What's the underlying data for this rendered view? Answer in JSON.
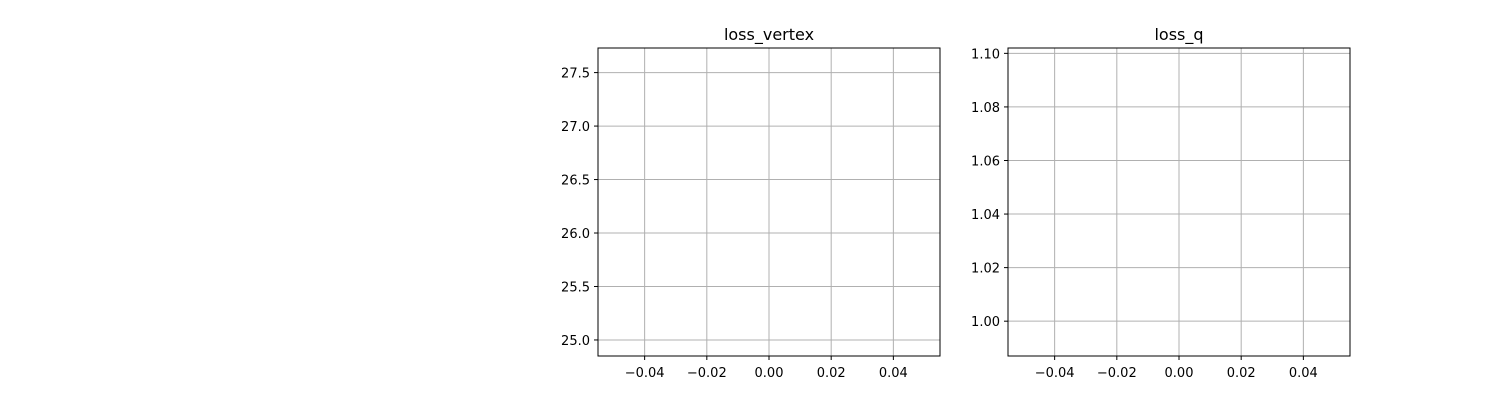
{
  "chart_data": [
    {
      "type": "line",
      "title": "loss_vertex",
      "xlabel": "",
      "ylabel": "",
      "xlim": [
        -0.055,
        0.055
      ],
      "ylim": [
        24.85,
        27.73
      ],
      "x_ticks": [
        -0.04,
        -0.02,
        0.0,
        0.02,
        0.04
      ],
      "x_tick_labels": [
        "−0.04",
        "−0.02",
        "0.00",
        "0.02",
        "0.04"
      ],
      "y_ticks": [
        25.0,
        25.5,
        26.0,
        26.5,
        27.0,
        27.5
      ],
      "y_tick_labels": [
        "25.0",
        "25.5",
        "26.0",
        "26.5",
        "27.0",
        "27.5"
      ],
      "grid": true,
      "series": []
    },
    {
      "type": "line",
      "title": "loss_q",
      "xlabel": "",
      "ylabel": "",
      "xlim": [
        -0.055,
        0.055
      ],
      "ylim": [
        0.987,
        1.102
      ],
      "x_ticks": [
        -0.04,
        -0.02,
        0.0,
        0.02,
        0.04
      ],
      "x_tick_labels": [
        "−0.04",
        "−0.02",
        "0.00",
        "0.02",
        "0.04"
      ],
      "y_ticks": [
        1.0,
        1.02,
        1.04,
        1.06,
        1.08,
        1.1
      ],
      "y_tick_labels": [
        "1.00",
        "1.02",
        "1.04",
        "1.06",
        "1.08",
        "1.10"
      ],
      "grid": true,
      "series": []
    }
  ],
  "colors": {
    "grid": "#b0b0b0",
    "axes": "#000000",
    "background": "#ffffff"
  }
}
